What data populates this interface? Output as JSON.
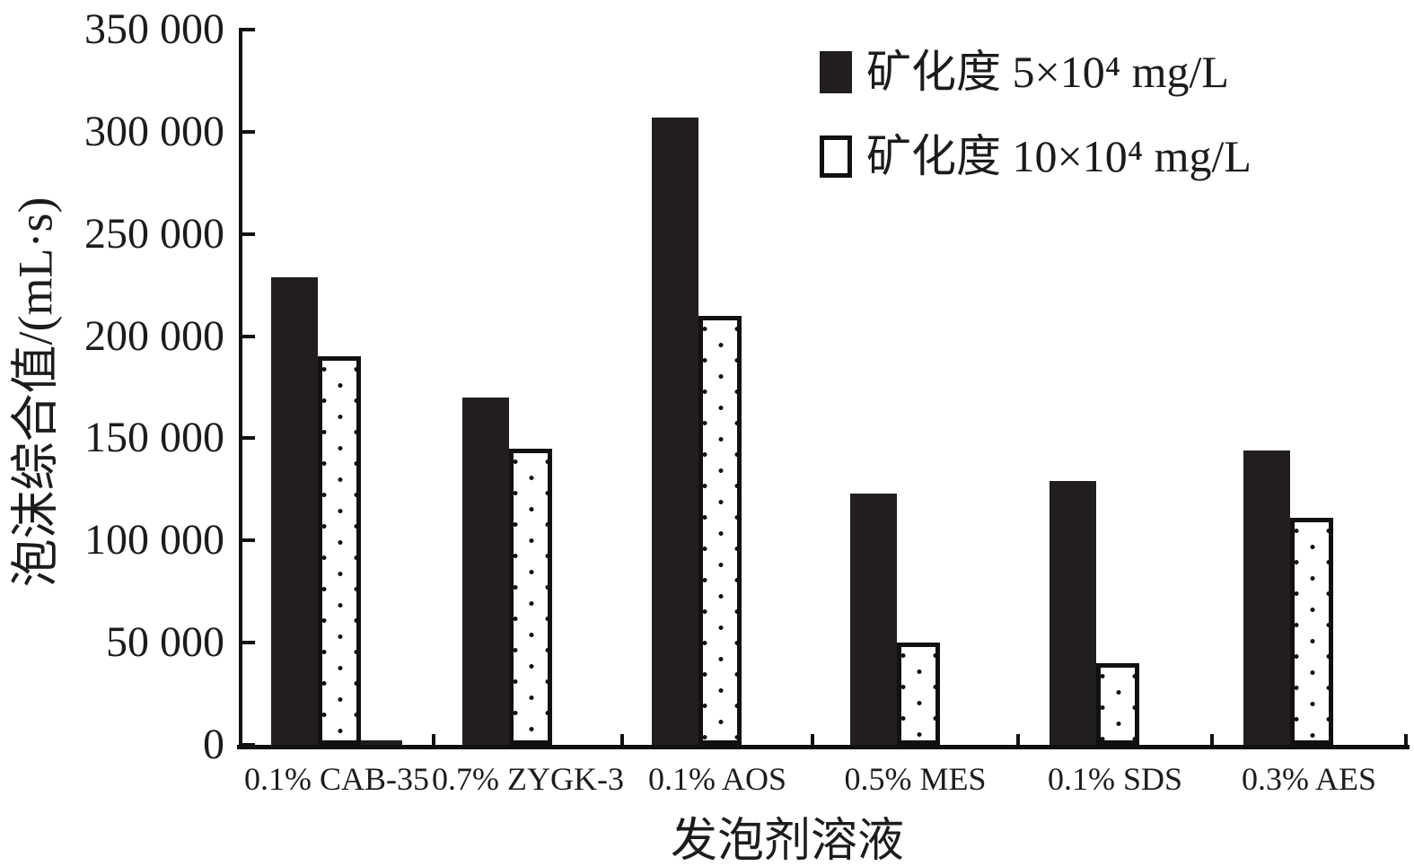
{
  "figure": {
    "background": "#ffffff",
    "ink_color": "#1c1c1c",
    "bar_black": "#221e1e"
  },
  "chart_data": {
    "type": "bar",
    "title": "",
    "xlabel": "发泡剂溶液",
    "ylabel": "泡沫综合值/(mL·s)",
    "categories": [
      "0.1% CAB-35",
      "0.7% ZYGK-3",
      "0.1% AOS",
      "0.5% MES",
      "0.1% SDS",
      "0.3% AES"
    ],
    "series": [
      {
        "name": "矿化度 5×10⁴ mg/L",
        "swatch": "solid-black",
        "values": [
          229000,
          170000,
          307000,
          123000,
          129000,
          144000
        ]
      },
      {
        "name": "矿化度 10×10⁴ mg/L",
        "swatch": "white-dotted",
        "values": [
          190000,
          145000,
          210000,
          50000,
          40000,
          111000
        ]
      }
    ],
    "extra_stub": {
      "category_index": 0,
      "value": 2000,
      "style": "solid-black"
    },
    "ylim": [
      0,
      350000
    ],
    "ytick_values": [
      0,
      50000,
      100000,
      150000,
      200000,
      250000,
      300000,
      350000
    ],
    "ytick_labels": [
      "0",
      "50 000",
      "100 000",
      "150 000",
      "200 000",
      "250 000",
      "300 000",
      "350 000"
    ],
    "grid": false,
    "legend_position": "top-right-inside"
  }
}
